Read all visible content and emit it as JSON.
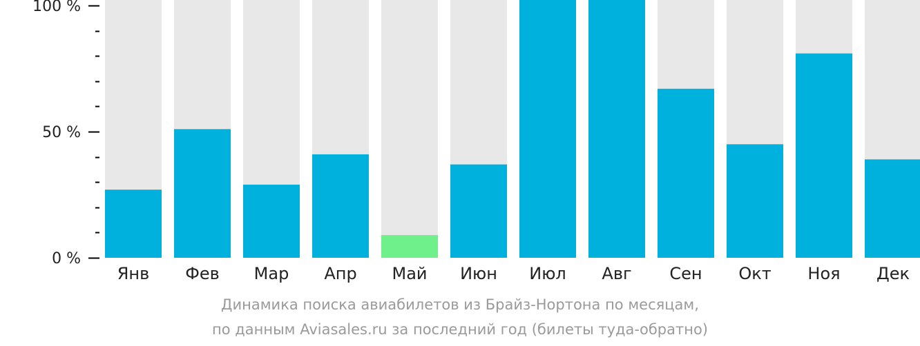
{
  "chart_data": {
    "type": "bar",
    "categories": [
      "Янв",
      "Фев",
      "Мар",
      "Апр",
      "Май",
      "Июн",
      "Июл",
      "Авг",
      "Сен",
      "Окт",
      "Ноя",
      "Дек"
    ],
    "values": [
      27,
      51,
      29,
      41,
      9,
      37,
      107,
      105,
      67,
      45,
      81,
      39
    ],
    "ylim": [
      0,
      100
    ],
    "yticks": [
      "0 %",
      "50 %",
      "100 %"
    ],
    "colors": {
      "bar": "#00b0dd",
      "highlight": "#6ff08a",
      "background": "#e8e8e8"
    },
    "highlight_index": 4
  },
  "caption": {
    "line1": "Динамика поиска авиабилетов из Брайз-Нортона по месяцам,",
    "line2": "по данным Aviasales.ru за последний год (билеты туда-обратно)"
  }
}
